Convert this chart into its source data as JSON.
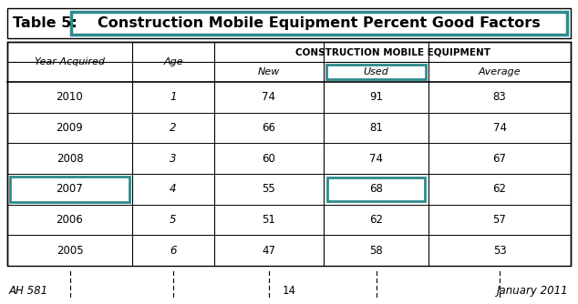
{
  "title_prefix": "Table 5:",
  "title_main": "Construction Mobile Equipment Percent Good Factors",
  "col_group_label": "CONSTRUCTION MOBILE EQUIPMENT",
  "col_headers_row1": [
    "Year Acquired",
    "Age",
    "",
    "",
    ""
  ],
  "col_headers_row2": [
    "",
    "",
    "New",
    "Used",
    "Average"
  ],
  "rows": [
    [
      "2010",
      "1",
      "74",
      "91",
      "83"
    ],
    [
      "2009",
      "2",
      "66",
      "81",
      "74"
    ],
    [
      "2008",
      "3",
      "60",
      "74",
      "67"
    ],
    [
      "2007",
      "4",
      "55",
      "68",
      "62"
    ],
    [
      "2006",
      "5",
      "51",
      "62",
      "57"
    ],
    [
      "2005",
      "6",
      "47",
      "58",
      "53"
    ]
  ],
  "shaded_rows": [
    0,
    5
  ],
  "highlight_year_row": 3,
  "highlight_used_row": 3,
  "teal_color": "#2e8b8b",
  "shade_color": "#d3d3d3",
  "white_color": "#ffffff",
  "bg_color": "#ffffff",
  "text_color": "#000000",
  "footer_left": "AH 581",
  "footer_center": "14",
  "footer_right": "January 2011"
}
